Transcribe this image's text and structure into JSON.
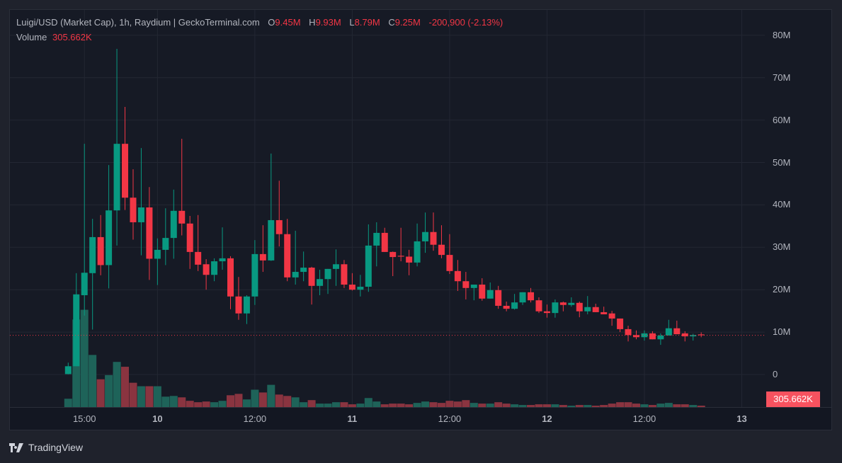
{
  "legend": {
    "title": "Luigi/USD (Market Cap), 1h, Raydium | GeckoTerminal.com",
    "o_label": "O",
    "o_value": "9.45M",
    "h_label": "H",
    "h_value": "9.93M",
    "l_label": "L",
    "l_value": "8.79M",
    "c_label": "C",
    "c_value": "9.25M",
    "change": "-200,900 (-2.13%)",
    "volume_label": "Volume",
    "volume_value": "305.662K"
  },
  "volume_axis_label": "305.662K",
  "branding": "TradingView",
  "colors": {
    "up": "#089981",
    "down": "#f23645",
    "up_volume": "#1e6359",
    "down_volume": "#8a3440",
    "price_line": "#f23645"
  },
  "chart_data": {
    "type": "candlestick",
    "title": "Luigi/USD (Market Cap), 1h, Raydium",
    "interval_hours": 1,
    "first_candle": "9th 13:00",
    "y_unit": "M",
    "ylim": [
      0,
      80
    ],
    "yticks": [
      "0",
      "10M",
      "20M",
      "30M",
      "40M",
      "50M",
      "60M",
      "70M",
      "80M"
    ],
    "ytick_values": [
      0,
      10,
      20,
      30,
      40,
      50,
      60,
      70,
      80
    ],
    "xticks": [
      {
        "label": "15:00",
        "hour": 2,
        "day": false
      },
      {
        "label": "10",
        "hour": 11,
        "day": true
      },
      {
        "label": "12:00",
        "hour": 23,
        "day": false
      },
      {
        "label": "11",
        "hour": 35,
        "day": true
      },
      {
        "label": "12:00",
        "hour": 47,
        "day": false
      },
      {
        "label": "12",
        "hour": 59,
        "day": true
      },
      {
        "label": "12:00",
        "hour": 71,
        "day": false
      },
      {
        "label": "13",
        "hour": 83,
        "day": true
      }
    ],
    "grid": true,
    "last_price": 9.25,
    "ohlc": [
      [
        0.1,
        2.8,
        0.05,
        1.95
      ],
      [
        1.95,
        23.9,
        1.95,
        18.9
      ],
      [
        18.7,
        54.4,
        13.9,
        24.0
      ],
      [
        23.9,
        36.7,
        10.6,
        32.4
      ],
      [
        32.4,
        37.6,
        23.4,
        25.8
      ],
      [
        25.8,
        49.4,
        20.3,
        38.7
      ],
      [
        38.7,
        76.8,
        30.4,
        54.4
      ],
      [
        54.4,
        63.1,
        38.8,
        41.7
      ],
      [
        41.7,
        48.4,
        31.8,
        35.9
      ],
      [
        35.9,
        53.4,
        28.1,
        39.4
      ],
      [
        39.4,
        44.2,
        22.3,
        27.3
      ],
      [
        27.3,
        32.1,
        21.1,
        29.4
      ],
      [
        29.4,
        39.2,
        25.8,
        32.2
      ],
      [
        32.2,
        43.6,
        27.3,
        38.6
      ],
      [
        38.6,
        55.6,
        32.8,
        35.6
      ],
      [
        35.6,
        37.4,
        24.9,
        28.9
      ],
      [
        28.9,
        37.6,
        24.4,
        25.9
      ],
      [
        26.0,
        27.2,
        20.0,
        23.5
      ],
      [
        23.5,
        27.4,
        22.0,
        26.7
      ],
      [
        26.7,
        34.7,
        24.7,
        27.4
      ],
      [
        27.4,
        27.9,
        15.4,
        18.4
      ],
      [
        18.4,
        23.0,
        12.9,
        14.4
      ],
      [
        14.4,
        18.7,
        11.9,
        18.4
      ],
      [
        18.4,
        31.7,
        16.4,
        28.4
      ],
      [
        28.4,
        35.2,
        24.2,
        26.9
      ],
      [
        26.9,
        52.1,
        26.8,
        36.4
      ],
      [
        36.4,
        45.7,
        30.2,
        33.1
      ],
      [
        33.1,
        36.7,
        22.0,
        22.9
      ],
      [
        22.9,
        33.9,
        21.2,
        24.2
      ],
      [
        24.2,
        29.0,
        22.0,
        25.2
      ],
      [
        25.2,
        25.4,
        16.5,
        20.9
      ],
      [
        20.9,
        24.7,
        18.7,
        22.5
      ],
      [
        22.5,
        24.9,
        19.0,
        24.9
      ],
      [
        24.9,
        29.5,
        20.9,
        26.0
      ],
      [
        26.0,
        27.0,
        20.4,
        21.2
      ],
      [
        21.2,
        23.9,
        19.8,
        20.0
      ],
      [
        20.0,
        23.5,
        18.4,
        20.7
      ],
      [
        20.7,
        35.4,
        19.5,
        30.4
      ],
      [
        30.4,
        35.9,
        25.5,
        33.4
      ],
      [
        33.4,
        34.6,
        28.9,
        28.9
      ],
      [
        28.9,
        29.0,
        23.2,
        27.7
      ],
      [
        28.0,
        34.6,
        26.7,
        27.8
      ],
      [
        27.8,
        29.4,
        23.4,
        26.4
      ],
      [
        26.4,
        35.6,
        25.5,
        31.4
      ],
      [
        31.4,
        38.2,
        28.7,
        33.6
      ],
      [
        33.6,
        38.2,
        29.2,
        30.6
      ],
      [
        30.6,
        35.2,
        27.4,
        28.2
      ],
      [
        28.2,
        33.1,
        23.7,
        24.4
      ],
      [
        24.4,
        27.0,
        19.7,
        22.0
      ],
      [
        22.0,
        24.2,
        17.7,
        20.4
      ],
      [
        20.4,
        21.2,
        17.5,
        21.2
      ],
      [
        21.2,
        22.7,
        17.4,
        17.9
      ],
      [
        17.9,
        21.7,
        17.9,
        19.9
      ],
      [
        19.9,
        20.9,
        15.5,
        16.2
      ],
      [
        16.2,
        17.2,
        14.9,
        15.5
      ],
      [
        15.5,
        19.0,
        15.3,
        17.0
      ],
      [
        17.0,
        19.4,
        16.4,
        19.4
      ],
      [
        19.4,
        20.4,
        17.0,
        17.5
      ],
      [
        17.5,
        18.2,
        14.5,
        14.9
      ],
      [
        14.9,
        16.5,
        13.4,
        14.5
      ],
      [
        14.5,
        17.7,
        13.4,
        17.0
      ],
      [
        17.0,
        17.2,
        14.9,
        16.4
      ],
      [
        16.4,
        18.2,
        16.0,
        16.9
      ],
      [
        16.9,
        17.2,
        13.5,
        14.9
      ],
      [
        14.9,
        18.5,
        14.2,
        15.9
      ],
      [
        15.9,
        16.7,
        14.7,
        14.7
      ],
      [
        14.7,
        16.0,
        14.2,
        14.2
      ],
      [
        14.4,
        15.0,
        11.5,
        13.2
      ],
      [
        13.2,
        13.2,
        10.0,
        10.7
      ],
      [
        10.7,
        11.5,
        7.8,
        9.3
      ],
      [
        9.3,
        10.4,
        8.3,
        8.8
      ],
      [
        8.8,
        10.4,
        8.0,
        9.7
      ],
      [
        9.7,
        10.2,
        8.3,
        8.3
      ],
      [
        8.3,
        9.7,
        7.0,
        9.2
      ],
      [
        9.2,
        12.9,
        9.2,
        10.9
      ],
      [
        10.9,
        12.7,
        9.5,
        9.5
      ],
      [
        9.7,
        10.2,
        7.8,
        9.0
      ],
      [
        9.0,
        9.6,
        8.0,
        9.3
      ],
      [
        9.45,
        9.93,
        8.79,
        9.25
      ]
    ],
    "volume_k": [
      1800,
      18900,
      21000,
      11250,
      6000,
      6900,
      9750,
      8700,
      5250,
      4500,
      4500,
      4500,
      2250,
      2400,
      2100,
      1350,
      1050,
      1200,
      1050,
      1350,
      2550,
      2850,
      1650,
      3750,
      3150,
      4800,
      2700,
      2400,
      2100,
      1050,
      1500,
      750,
      750,
      1050,
      1050,
      600,
      750,
      1950,
      1200,
      600,
      750,
      750,
      600,
      900,
      1200,
      1050,
      900,
      1350,
      1200,
      1500,
      900,
      750,
      750,
      1050,
      750,
      600,
      450,
      450,
      600,
      600,
      600,
      450,
      300,
      450,
      450,
      300,
      450,
      750,
      1050,
      1050,
      750,
      600,
      450,
      750,
      900,
      600,
      600,
      450,
      305.662
    ]
  }
}
